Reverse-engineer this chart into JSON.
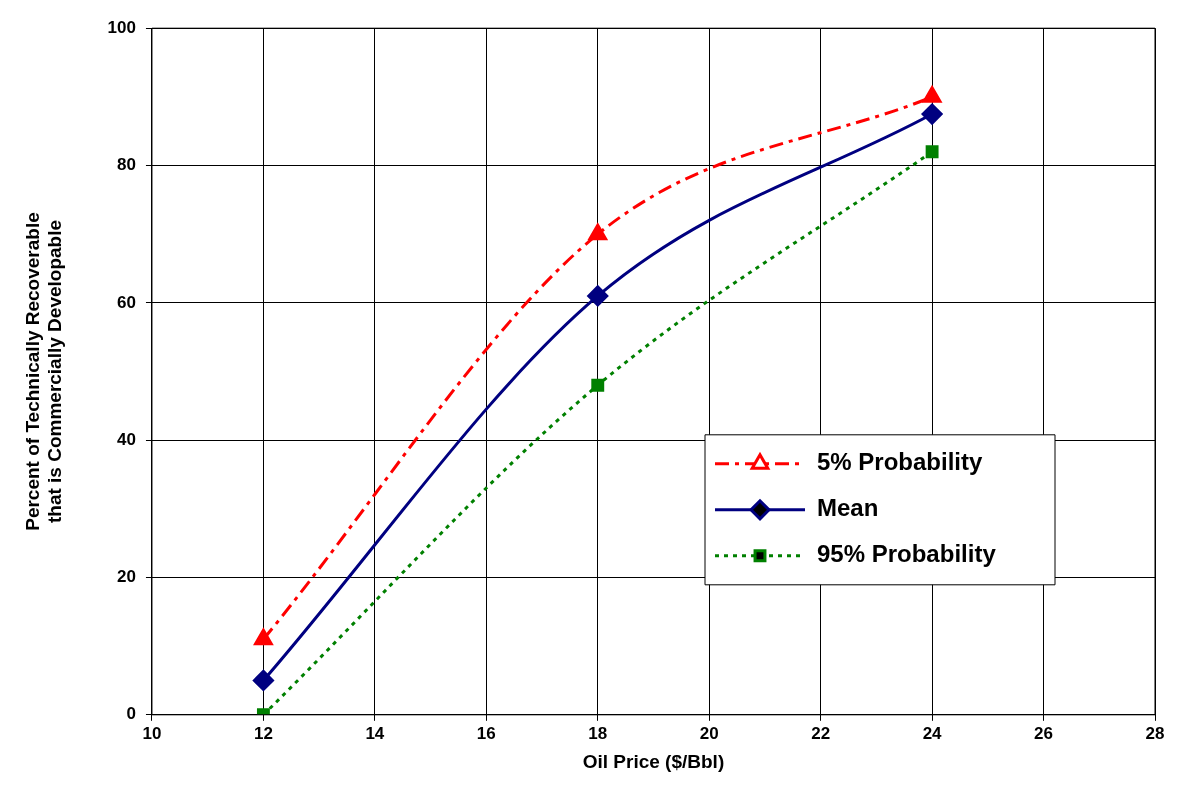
{
  "chart_data": {
    "type": "line",
    "xlabel": "Oil Price ($/Bbl)",
    "ylabel": "Percent of Technically Recoverable\nthat is Commercially Developable",
    "xlim": [
      10,
      28
    ],
    "xticks": [
      10,
      12,
      14,
      16,
      18,
      20,
      22,
      24,
      26,
      28
    ],
    "ylim": [
      0,
      100
    ],
    "yticks": [
      0,
      20,
      40,
      60,
      80,
      100
    ],
    "grid": true,
    "legend": "bottom right",
    "series": [
      {
        "name": "5% Probability",
        "color": "#ff0000",
        "x": [
          12,
          18,
          24
        ],
        "values": [
          11,
          70,
          90
        ],
        "marker": "triangle",
        "line_style": "dashed"
      },
      {
        "name": "Mean",
        "color": "#000080",
        "x": [
          12,
          18,
          24
        ],
        "values": [
          5,
          61,
          87.5
        ],
        "marker": "diamond",
        "line_style": "solid"
      },
      {
        "name": "95% Probability",
        "color": "#008000",
        "x": [
          12,
          18,
          24
        ],
        "values": [
          0,
          48,
          82
        ],
        "marker": "square",
        "line_style": "dotted"
      }
    ]
  }
}
